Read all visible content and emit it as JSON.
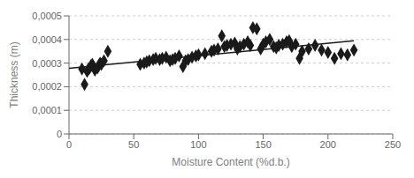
{
  "chart_data": {
    "type": "scatter",
    "xlabel": "Moisture Content (%d.b.)",
    "ylabel": "Thickness (m)",
    "xlim": [
      0,
      250
    ],
    "ylim": [
      0,
      0.0005
    ],
    "xticks": [
      0,
      50,
      100,
      150,
      200,
      250
    ],
    "yticks": [
      0,
      {
        "value": 0.0001,
        "label": "0,0001"
      },
      {
        "value": 0.0002,
        "label": "0,0002"
      },
      {
        "value": 0.0003,
        "label": "0,0003"
      },
      {
        "value": 0.0004,
        "label": "0,0004"
      },
      {
        "value": 0.0005,
        "label": "0,0005"
      }
    ],
    "grid": "y",
    "series": [
      {
        "type": "scatter",
        "color": "#1a1a1a",
        "marker": "diamond",
        "x": [
          10,
          12,
          14,
          15,
          16,
          17,
          18,
          19,
          20,
          22,
          23,
          24,
          25,
          27,
          30,
          55,
          58,
          60,
          62,
          65,
          67,
          70,
          72,
          75,
          78,
          80,
          82,
          85,
          88,
          90,
          92,
          95,
          98,
          100,
          105,
          110,
          112,
          115,
          118,
          120,
          122,
          125,
          128,
          130,
          132,
          135,
          138,
          140,
          142,
          145,
          148,
          150,
          152,
          155,
          158,
          160,
          162,
          165,
          168,
          170,
          172,
          175,
          178,
          180,
          185,
          190,
          195,
          200,
          205,
          210,
          215,
          220
        ],
        "values": [
          0.000275,
          0.00021,
          0.000265,
          0.000275,
          0.00028,
          0.00029,
          0.000295,
          0.000285,
          0.00027,
          0.00028,
          0.00029,
          0.0003,
          0.000295,
          0.00031,
          0.00035,
          0.000295,
          0.0003,
          0.000305,
          0.00031,
          0.000315,
          0.00032,
          0.000315,
          0.00032,
          0.000325,
          0.00031,
          0.000315,
          0.00032,
          0.00033,
          0.000285,
          0.00031,
          0.000315,
          0.000325,
          0.00033,
          0.000335,
          0.00034,
          0.00035,
          0.000355,
          0.00036,
          0.000415,
          0.00037,
          0.000375,
          0.00038,
          0.000385,
          0.00036,
          0.00037,
          0.00038,
          0.00039,
          0.000375,
          0.00045,
          0.000445,
          0.00036,
          0.00038,
          0.00039,
          0.0004,
          0.00037,
          0.000365,
          0.000375,
          0.00038,
          0.00039,
          0.000395,
          0.00037,
          0.00038,
          0.00032,
          0.00035,
          0.00036,
          0.000375,
          0.000355,
          0.000345,
          0.00032,
          0.00034,
          0.000335,
          0.000355
        ]
      },
      {
        "type": "line",
        "color": "#1a1a1a",
        "line_style": "solid",
        "x": [
          0,
          220
        ],
        "values": [
          0.000278,
          0.000395
        ]
      }
    ]
  }
}
